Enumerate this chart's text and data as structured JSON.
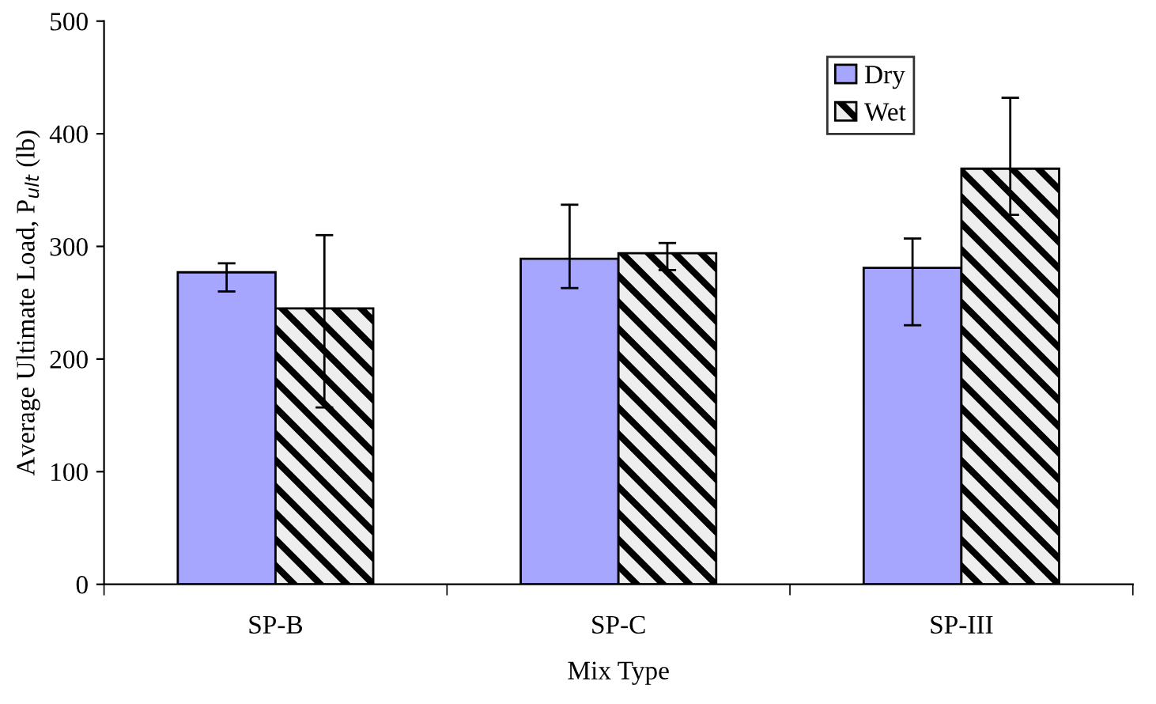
{
  "chart_data": {
    "type": "bar",
    "xlabel": "Mix Type",
    "ylabel": "Average Ultimate Load, P$_{ult}$ (lb)",
    "categories": [
      "SP-B",
      "SP-C",
      "SP-III"
    ],
    "series": [
      {
        "name": "Dry",
        "color": "#a6a6ff",
        "values": [
          277,
          289,
          281
        ],
        "errors": [
          [
            260,
            285
          ],
          [
            263,
            337
          ],
          [
            230,
            307
          ]
        ]
      },
      {
        "name": "Wet",
        "color": "#000000",
        "values": [
          245,
          294,
          369
        ],
        "errors": [
          [
            157,
            310
          ],
          [
            279,
            303
          ],
          [
            328,
            432
          ]
        ]
      }
    ],
    "ylim": [
      0,
      500
    ],
    "yticks": [
      0,
      100,
      200,
      300,
      400,
      500
    ],
    "grid": false,
    "legend": "top right"
  }
}
